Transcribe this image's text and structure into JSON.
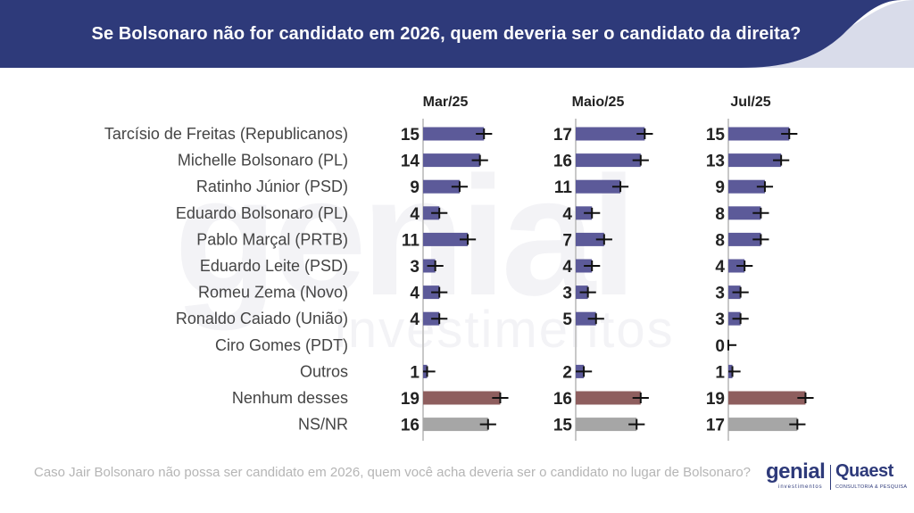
{
  "header": {
    "title": "Se Bolsonaro não for candidato em 2026, quem deveria ser o candidato da direita?"
  },
  "watermark": {
    "brand": "genial",
    "sub": "investimentos"
  },
  "chart_data": {
    "type": "bar",
    "orientation": "horizontal",
    "grid": false,
    "legend": "none",
    "categories": [
      "Tarcísio de Freitas (Republicanos)",
      "Michelle Bolsonaro (PL)",
      "Ratinho Júnior (PSD)",
      "Eduardo Bolsonaro (PL)",
      "Pablo Marçal (PRTB)",
      "Eduardo Leite (PSD)",
      "Romeu Zema (Novo)",
      "Ronaldo Caiado (União)",
      "Ciro Gomes (PDT)",
      "Outros",
      "Nenhum desses",
      "NS/NR"
    ],
    "category_colors": [
      "#5c5a99",
      "#5c5a99",
      "#5c5a99",
      "#5c5a99",
      "#5c5a99",
      "#5c5a99",
      "#5c5a99",
      "#5c5a99",
      "#5c5a99",
      "#5c5a99",
      "#8e5e5e",
      "#a6a6a6"
    ],
    "series": [
      {
        "name": "Mar/25",
        "values": [
          15,
          14,
          9,
          4,
          11,
          3,
          4,
          4,
          null,
          1,
          19,
          16
        ]
      },
      {
        "name": "Maio/25",
        "values": [
          17,
          16,
          11,
          4,
          7,
          4,
          3,
          5,
          null,
          2,
          16,
          15
        ]
      },
      {
        "name": "Jul/25",
        "values": [
          15,
          13,
          9,
          8,
          8,
          4,
          3,
          3,
          0,
          1,
          19,
          17
        ]
      }
    ],
    "error_bar": 2,
    "xlim": [
      0,
      20
    ]
  },
  "footer": {
    "question": "Caso Jair Bolsonaro não possa ser candidato em 2026, quem você acha deveria ser o candidato no lugar de Bolsonaro?"
  },
  "logos": {
    "genial_word": "genial",
    "genial_sub": "investimentos",
    "quaest_word": "Quaest",
    "quaest_sub": "CONSULTORIA & PESQUISA"
  },
  "colors": {
    "header_bg": "#2e3a7a",
    "header_accent": "#d9dcea",
    "candidate_bar": "#5c5a99",
    "nenhum_bar": "#8e5e5e",
    "nsnr_bar": "#a6a6a6"
  }
}
